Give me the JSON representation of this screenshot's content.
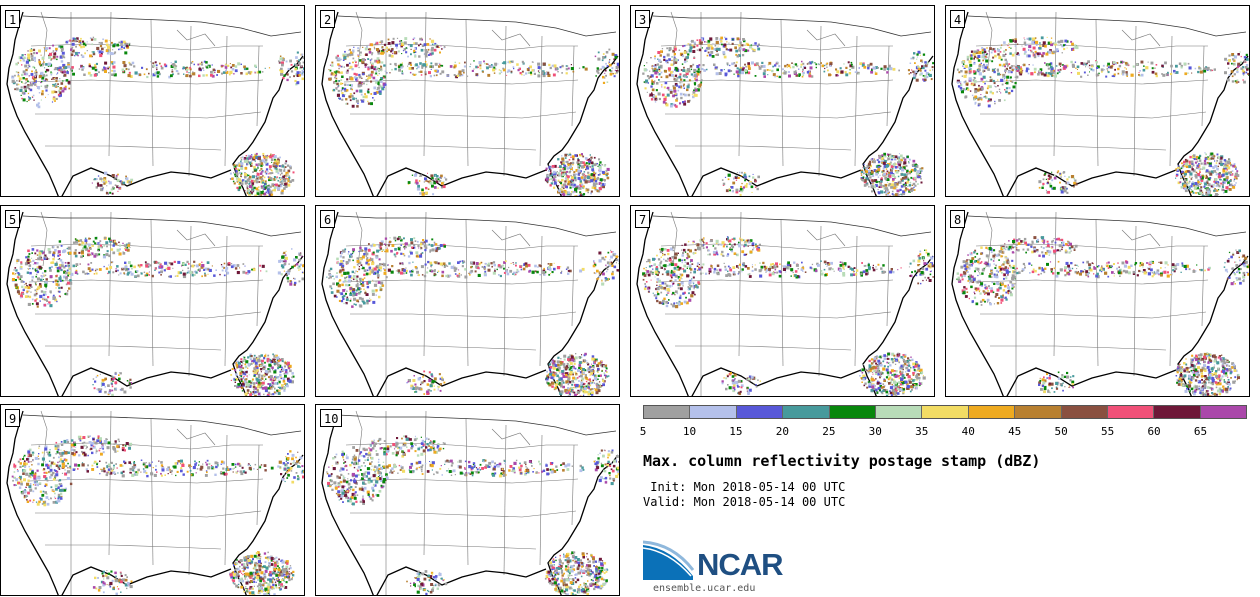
{
  "panels": [
    {
      "label": "1"
    },
    {
      "label": "2"
    },
    {
      "label": "3"
    },
    {
      "label": "4"
    },
    {
      "label": "5"
    },
    {
      "label": "6"
    },
    {
      "label": "7"
    },
    {
      "label": "8"
    },
    {
      "label": "9"
    },
    {
      "label": "10"
    }
  ],
  "colorbar": {
    "ticks": [
      "5",
      "10",
      "15",
      "20",
      "25",
      "30",
      "35",
      "40",
      "45",
      "50",
      "55",
      "60",
      "65"
    ],
    "colors": [
      "#a0a0a0",
      "#b4c0ea",
      "#5858d8",
      "#479a9c",
      "#08870c",
      "#b8dcb8",
      "#f2dc64",
      "#eeaa20",
      "#b88030",
      "#8a5040",
      "#f05078",
      "#6e1838",
      "#aa48aa"
    ]
  },
  "title": "Max. column reflectivity postage stamp (dBZ)",
  "init": " Init: Mon 2018-05-14 00 UTC",
  "valid": "Valid: Mon 2018-05-14 00 UTC",
  "logo": {
    "name": "NCAR",
    "url": "ensemble.ucar.edu",
    "color": "#1f4f82"
  }
}
